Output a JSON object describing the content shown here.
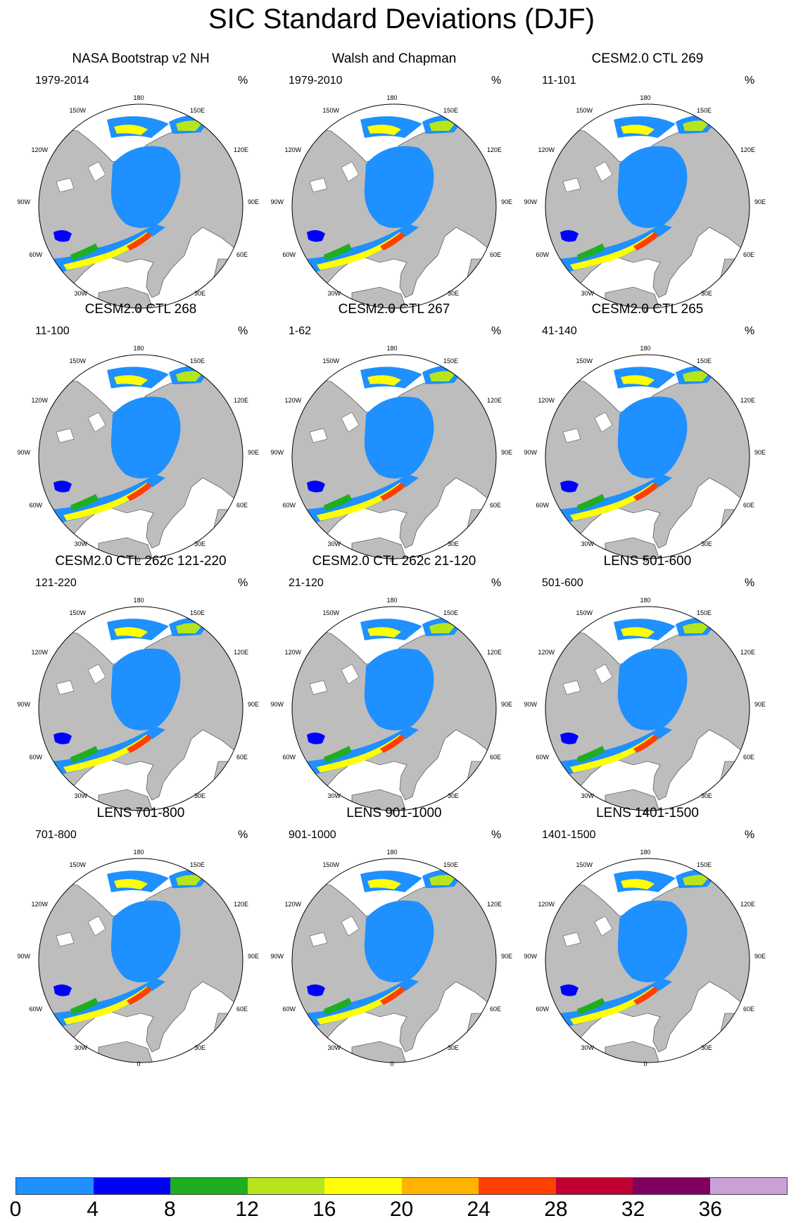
{
  "title": "SIC Standard Deviations (DJF)",
  "unit": "%",
  "longitude_labels": {
    "top": "180",
    "w150": "150W",
    "e150": "150E",
    "w120": "120W",
    "e120": "120E",
    "w90": "90W",
    "e90": "90E",
    "w60": "60W",
    "e60": "60E",
    "w30": "30W",
    "e30": "30E",
    "bottom": "0"
  },
  "panels": [
    {
      "title": "NASA Bootstrap v2 NH",
      "period": "1979-2014"
    },
    {
      "title": "Walsh and Chapman",
      "period": "1979-2010"
    },
    {
      "title": "CESM2.0 CTL 269",
      "period": "11-101"
    },
    {
      "title": "CESM2.0 CTL 268",
      "period": "11-100"
    },
    {
      "title": "CESM2.0 CTL 267",
      "period": "1-62"
    },
    {
      "title": "CESM2.0 CTL 265",
      "period": "41-140"
    },
    {
      "title": "CESM2.0 CTL 262c 121-220",
      "period": "121-220"
    },
    {
      "title": "CESM2.0 CTL 262c 21-120",
      "period": "21-120"
    },
    {
      "title": "LENS 501-600",
      "period": "501-600"
    },
    {
      "title": "LENS 701-800",
      "period": "701-800"
    },
    {
      "title": "LENS 901-1000",
      "period": "901-1000"
    },
    {
      "title": "LENS 1401-1500",
      "period": "1401-1500"
    }
  ],
  "colorbar": {
    "ticks": [
      "0",
      "4",
      "8",
      "12",
      "16",
      "20",
      "24",
      "28",
      "32",
      "36"
    ],
    "colors": [
      "#1e90ff",
      "#0000ff",
      "#1fae1f",
      "#b5e61d",
      "#ffff00",
      "#ffb400",
      "#ff4000",
      "#c00030",
      "#800060",
      "#c8a2d4"
    ]
  },
  "colors": {
    "land": "#bdbdbd",
    "ocean": "#ffffff",
    "ice_low_sd": "#1e90ff"
  }
}
